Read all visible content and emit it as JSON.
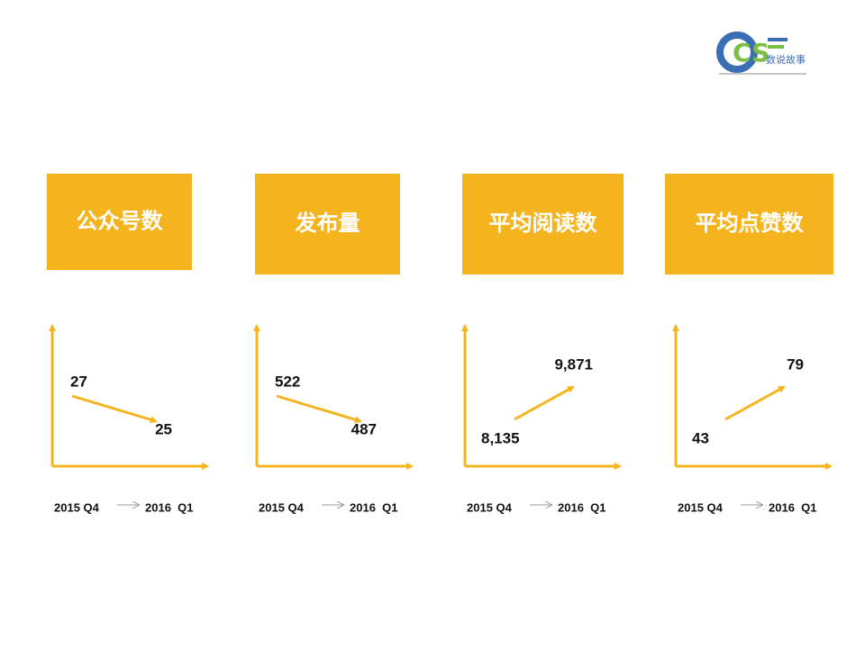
{
  "logo": {
    "mark": "CS",
    "text": "数说故事"
  },
  "chart_data": [
    {
      "type": "arrow",
      "title": "公众号数",
      "categories": [
        "2015 Q4",
        "2016  Q1"
      ],
      "values": [
        27,
        25
      ],
      "color": "#f5b41e"
    },
    {
      "type": "arrow",
      "title": "发布量",
      "categories": [
        "2015 Q4",
        "2016  Q1"
      ],
      "values": [
        522,
        487
      ],
      "color": "#f5b41e"
    },
    {
      "type": "arrow",
      "title": "平均阅读数",
      "categories": [
        "2015 Q4",
        "2016  Q1"
      ],
      "values": [
        8135,
        9871
      ],
      "value_labels": [
        "8,135",
        "9,871"
      ],
      "color": "#f5b41e"
    },
    {
      "type": "arrow",
      "title": "平均点赞数",
      "categories": [
        "2015 Q4",
        "2016  Q1"
      ],
      "values": [
        43,
        79
      ],
      "color": "#f5b41e"
    }
  ]
}
